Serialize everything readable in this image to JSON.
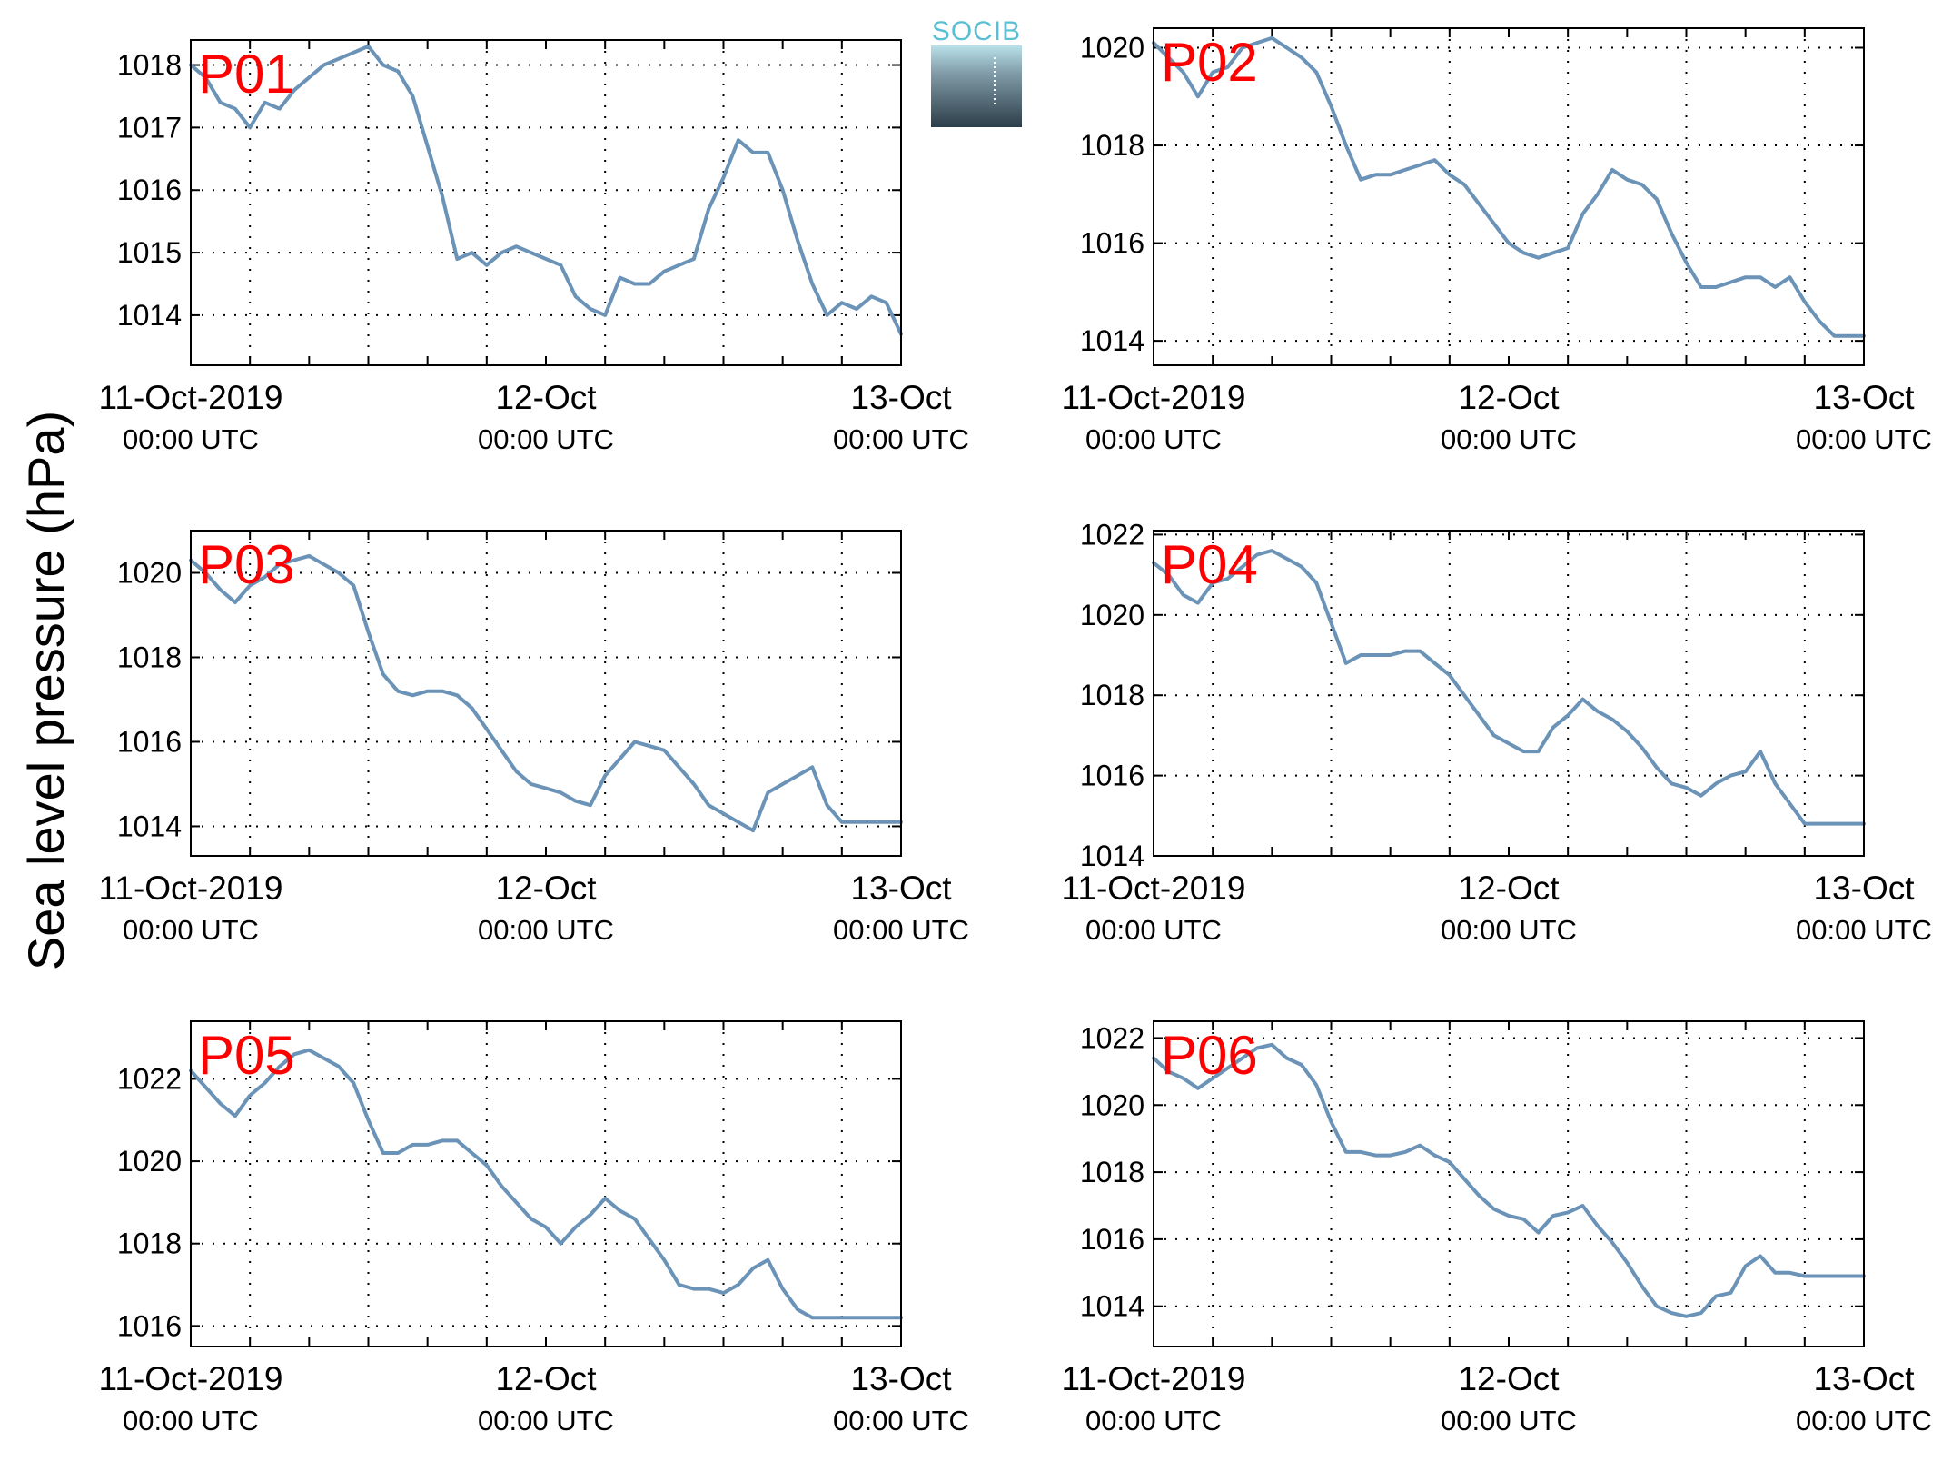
{
  "figure": {
    "ylabel": "Sea level pressure (hPa)",
    "logo_text": "SOCIB",
    "line_color": "#6a93b7",
    "label_color": "#ff0000"
  },
  "chart_data": [
    {
      "type": "line",
      "panel": "P01",
      "x_ticks": [
        {
          "date": "11-Oct-2019",
          "time": "00:00 UTC"
        },
        {
          "date": "12-Oct",
          "time": "00:00 UTC"
        },
        {
          "date": "13-Oct",
          "time": "00:00 UTC"
        }
      ],
      "y_ticks": [
        1014,
        1015,
        1016,
        1017,
        1018
      ],
      "ylim": [
        1013.2,
        1018.4
      ],
      "grid": true,
      "series": [
        {
          "x_hours": [
            0,
            1,
            2,
            3,
            4,
            5,
            6,
            7,
            8,
            9,
            10,
            11,
            12,
            13,
            14,
            15,
            16,
            17,
            18,
            19,
            20,
            21,
            22,
            23,
            24,
            25,
            26,
            27,
            28,
            29,
            30,
            31,
            32,
            33,
            34,
            35,
            36,
            37,
            38,
            39,
            40,
            41,
            42,
            43,
            44,
            45,
            46,
            47,
            48
          ],
          "values": [
            1018.0,
            1017.8,
            1017.4,
            1017.3,
            1017.0,
            1017.4,
            1017.3,
            1017.6,
            1017.8,
            1018.0,
            1018.1,
            1018.2,
            1018.3,
            1018.0,
            1017.9,
            1017.5,
            1016.7,
            1015.9,
            1014.9,
            1015.0,
            1014.8,
            1015.0,
            1015.1,
            1015.0,
            1014.9,
            1014.8,
            1014.3,
            1014.1,
            1014.0,
            1014.6,
            1014.5,
            1014.5,
            1014.7,
            1014.8,
            1014.9,
            1015.7,
            1016.2,
            1016.8,
            1016.6,
            1016.6,
            1016.0,
            1015.2,
            1014.5,
            1014.0,
            1014.2,
            1014.1,
            1014.3,
            1014.2,
            1013.7
          ]
        }
      ]
    },
    {
      "type": "line",
      "panel": "P02",
      "x_ticks": [
        {
          "date": "11-Oct-2019",
          "time": "00:00 UTC"
        },
        {
          "date": "12-Oct",
          "time": "00:00 UTC"
        },
        {
          "date": "13-Oct",
          "time": "00:00 UTC"
        }
      ],
      "y_ticks": [
        1014,
        1016,
        1018,
        1020
      ],
      "ylim": [
        1013.5,
        1020.4
      ],
      "grid": true,
      "series": [
        {
          "x_hours": [
            0,
            1,
            2,
            3,
            4,
            5,
            6,
            7,
            8,
            9,
            10,
            11,
            12,
            13,
            14,
            15,
            16,
            17,
            18,
            19,
            20,
            21,
            22,
            23,
            24,
            25,
            26,
            27,
            28,
            29,
            30,
            31,
            32,
            33,
            34,
            35,
            36,
            37,
            38,
            39,
            40,
            41,
            42,
            43,
            44,
            45,
            46,
            47,
            48
          ],
          "values": [
            1020.1,
            1019.8,
            1019.5,
            1019.0,
            1019.5,
            1019.6,
            1020.0,
            1020.1,
            1020.2,
            1020.0,
            1019.8,
            1019.5,
            1018.8,
            1018.0,
            1017.3,
            1017.4,
            1017.4,
            1017.5,
            1017.6,
            1017.7,
            1017.4,
            1017.2,
            1016.8,
            1016.4,
            1016.0,
            1015.8,
            1015.7,
            1015.8,
            1015.9,
            1016.6,
            1017.0,
            1017.5,
            1017.3,
            1017.2,
            1016.9,
            1016.2,
            1015.6,
            1015.1,
            1015.1,
            1015.2,
            1015.3,
            1015.3,
            1015.1,
            1015.3,
            1014.8,
            1014.4,
            1014.1,
            1014.1,
            1014.1
          ]
        }
      ]
    },
    {
      "type": "line",
      "panel": "P03",
      "x_ticks": [
        {
          "date": "11-Oct-2019",
          "time": "00:00 UTC"
        },
        {
          "date": "12-Oct",
          "time": "00:00 UTC"
        },
        {
          "date": "13-Oct",
          "time": "00:00 UTC"
        }
      ],
      "y_ticks": [
        1014,
        1016,
        1018,
        1020
      ],
      "ylim": [
        1013.3,
        1021.0
      ],
      "grid": true,
      "series": [
        {
          "x_hours": [
            0,
            1,
            2,
            3,
            4,
            5,
            6,
            7,
            8,
            9,
            10,
            11,
            12,
            13,
            14,
            15,
            16,
            17,
            18,
            19,
            20,
            21,
            22,
            23,
            24,
            25,
            26,
            27,
            28,
            29,
            30,
            31,
            32,
            33,
            34,
            35,
            36,
            37,
            38,
            39,
            40,
            41,
            42,
            43,
            44,
            45,
            46,
            47,
            48
          ],
          "values": [
            1020.3,
            1020.0,
            1019.6,
            1019.3,
            1019.7,
            1019.9,
            1020.2,
            1020.3,
            1020.4,
            1020.2,
            1020.0,
            1019.7,
            1018.6,
            1017.6,
            1017.2,
            1017.1,
            1017.2,
            1017.2,
            1017.1,
            1016.8,
            1016.3,
            1015.8,
            1015.3,
            1015.0,
            1014.9,
            1014.8,
            1014.6,
            1014.5,
            1015.2,
            1015.6,
            1016.0,
            1015.9,
            1015.8,
            1015.4,
            1015.0,
            1014.5,
            1014.3,
            1014.1,
            1013.9,
            1014.8,
            1015.0,
            1015.2,
            1015.4,
            1014.5,
            1014.1,
            1014.1,
            1014.1,
            1014.1,
            1014.1
          ]
        }
      ]
    },
    {
      "type": "line",
      "panel": "P04",
      "x_ticks": [
        {
          "date": "11-Oct-2019",
          "time": "00:00 UTC"
        },
        {
          "date": "12-Oct",
          "time": "00:00 UTC"
        },
        {
          "date": "13-Oct",
          "time": "00:00 UTC"
        }
      ],
      "y_ticks": [
        1014,
        1016,
        1018,
        1020,
        1022
      ],
      "ylim": [
        1014,
        1022.1
      ],
      "grid": true,
      "series": [
        {
          "x_hours": [
            0,
            1,
            2,
            3,
            4,
            5,
            6,
            7,
            8,
            9,
            10,
            11,
            12,
            13,
            14,
            15,
            16,
            17,
            18,
            19,
            20,
            21,
            22,
            23,
            24,
            25,
            26,
            27,
            28,
            29,
            30,
            31,
            32,
            33,
            34,
            35,
            36,
            37,
            38,
            39,
            40,
            41,
            42,
            43,
            44,
            45,
            46,
            47,
            48
          ],
          "values": [
            1021.3,
            1021.0,
            1020.5,
            1020.3,
            1020.8,
            1020.9,
            1021.2,
            1021.5,
            1021.6,
            1021.4,
            1021.2,
            1020.8,
            1019.8,
            1018.8,
            1019.0,
            1019.0,
            1019.0,
            1019.1,
            1019.1,
            1018.8,
            1018.5,
            1018.0,
            1017.5,
            1017.0,
            1016.8,
            1016.6,
            1016.6,
            1017.2,
            1017.5,
            1017.9,
            1017.6,
            1017.4,
            1017.1,
            1016.7,
            1016.2,
            1015.8,
            1015.7,
            1015.5,
            1015.8,
            1016.0,
            1016.1,
            1016.6,
            1015.8,
            1015.3,
            1014.8,
            1014.8,
            1014.8,
            1014.8,
            1014.8
          ]
        }
      ]
    },
    {
      "type": "line",
      "panel": "P05",
      "x_ticks": [
        {
          "date": "11-Oct-2019",
          "time": "00:00 UTC"
        },
        {
          "date": "12-Oct",
          "time": "00:00 UTC"
        },
        {
          "date": "13-Oct",
          "time": "00:00 UTC"
        }
      ],
      "y_ticks": [
        1016,
        1018,
        1020,
        1022
      ],
      "ylim": [
        1015.5,
        1023.4
      ],
      "grid": true,
      "series": [
        {
          "x_hours": [
            0,
            1,
            2,
            3,
            4,
            5,
            6,
            7,
            8,
            9,
            10,
            11,
            12,
            13,
            14,
            15,
            16,
            17,
            18,
            19,
            20,
            21,
            22,
            23,
            24,
            25,
            26,
            27,
            28,
            29,
            30,
            31,
            32,
            33,
            34,
            35,
            36,
            37,
            38,
            39,
            40,
            41,
            42,
            43,
            44,
            45,
            46,
            47,
            48
          ],
          "values": [
            1022.2,
            1021.8,
            1021.4,
            1021.1,
            1021.6,
            1021.9,
            1022.3,
            1022.6,
            1022.7,
            1022.5,
            1022.3,
            1021.9,
            1021.0,
            1020.2,
            1020.2,
            1020.4,
            1020.4,
            1020.5,
            1020.5,
            1020.2,
            1019.9,
            1019.4,
            1019.0,
            1018.6,
            1018.4,
            1018.0,
            1018.4,
            1018.7,
            1019.1,
            1018.8,
            1018.6,
            1018.1,
            1017.6,
            1017.0,
            1016.9,
            1016.9,
            1016.8,
            1017.0,
            1017.4,
            1017.6,
            1016.9,
            1016.4,
            1016.2,
            1016.2,
            1016.2,
            1016.2,
            1016.2,
            1016.2,
            1016.2
          ]
        }
      ]
    },
    {
      "type": "line",
      "panel": "P06",
      "x_ticks": [
        {
          "date": "11-Oct-2019",
          "time": "00:00 UTC"
        },
        {
          "date": "12-Oct",
          "time": "00:00 UTC"
        },
        {
          "date": "13-Oct",
          "time": "00:00 UTC"
        }
      ],
      "y_ticks": [
        1014,
        1016,
        1018,
        1020,
        1022
      ],
      "ylim": [
        1012.8,
        1022.5
      ],
      "grid": true,
      "series": [
        {
          "x_hours": [
            0,
            1,
            2,
            3,
            4,
            5,
            6,
            7,
            8,
            9,
            10,
            11,
            12,
            13,
            14,
            15,
            16,
            17,
            18,
            19,
            20,
            21,
            22,
            23,
            24,
            25,
            26,
            27,
            28,
            29,
            30,
            31,
            32,
            33,
            34,
            35,
            36,
            37,
            38,
            39,
            40,
            41,
            42,
            43,
            44,
            45,
            46,
            47,
            48
          ],
          "values": [
            1021.4,
            1021.0,
            1020.8,
            1020.5,
            1020.8,
            1021.1,
            1021.4,
            1021.7,
            1021.8,
            1021.4,
            1021.2,
            1020.6,
            1019.5,
            1018.6,
            1018.6,
            1018.5,
            1018.5,
            1018.6,
            1018.8,
            1018.5,
            1018.3,
            1017.8,
            1017.3,
            1016.9,
            1016.7,
            1016.6,
            1016.2,
            1016.7,
            1016.8,
            1017.0,
            1016.4,
            1015.9,
            1015.3,
            1014.6,
            1014.0,
            1013.8,
            1013.7,
            1013.8,
            1014.3,
            1014.4,
            1015.2,
            1015.5,
            1015.0,
            1015.0,
            1014.9,
            1014.9,
            1014.9,
            1014.9,
            1014.9
          ]
        }
      ]
    }
  ]
}
